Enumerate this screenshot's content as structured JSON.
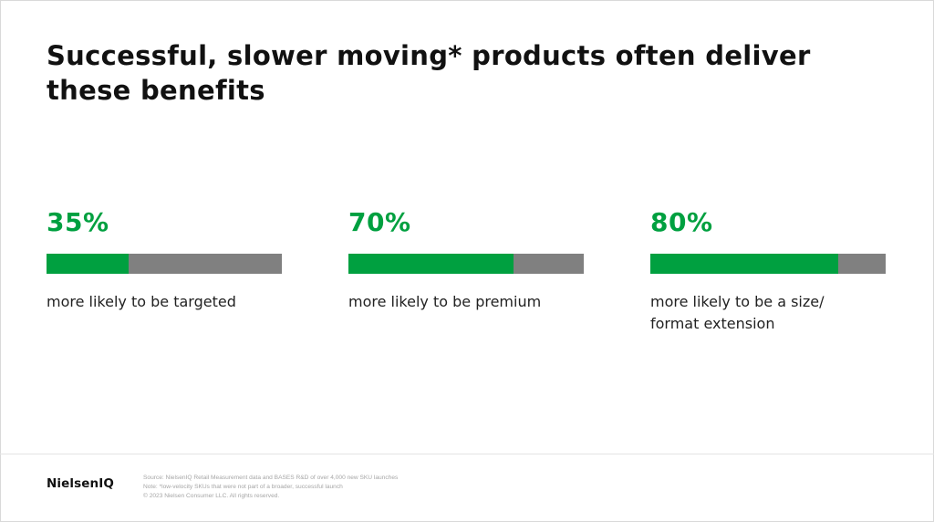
{
  "title": "Successful, slower moving* products often deliver these benefits",
  "colors": {
    "accent_green": "#00a040",
    "bar_remainder_gray": "#808080"
  },
  "chart_data": [
    {
      "type": "bar",
      "value": 35,
      "value_label": "35%",
      "description": "more likely to be targeted",
      "ylim": [
        0,
        100
      ]
    },
    {
      "type": "bar",
      "value": 70,
      "value_label": "70%",
      "description": "more likely to be premium",
      "ylim": [
        0,
        100
      ]
    },
    {
      "type": "bar",
      "value": 80,
      "value_label": "80%",
      "description": "more likely to be a size/ format extension",
      "ylim": [
        0,
        100
      ]
    }
  ],
  "footer": {
    "logo": "NielsenIQ",
    "source": "Source: NielsenIQ Retail Measurement data and BASES R&D of over 4,000 new SKU launches",
    "note": "Note: *low-velocity SKUs that were not part of a broader, successful launch",
    "copyright": "© 2023 Nielsen Consumer LLC. All rights reserved."
  }
}
